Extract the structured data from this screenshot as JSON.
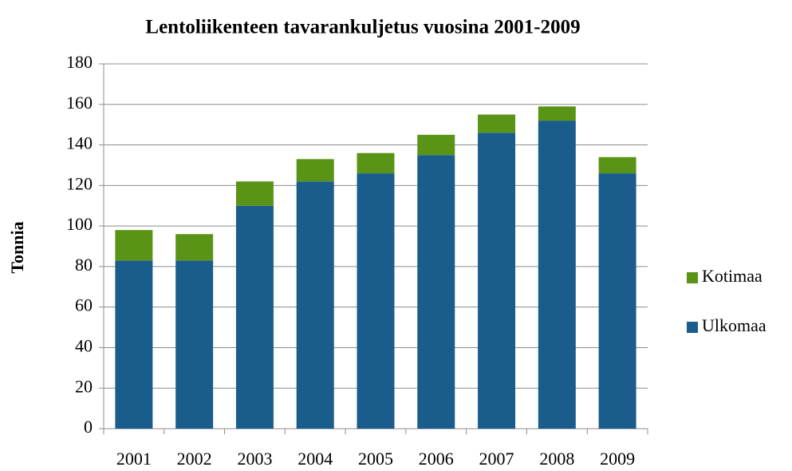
{
  "chart_data": {
    "type": "stacked-bar",
    "title": "Lentoliikenteen tavarankuljetus vuosina 2001-2009",
    "y_label": "Tonnia",
    "categories": [
      "2001",
      "2002",
      "2003",
      "2004",
      "2005",
      "2006",
      "2007",
      "2008",
      "2009"
    ],
    "series": [
      {
        "name": "Ulkomaa",
        "color": "#1a5c8c",
        "values": [
          83,
          83,
          110,
          122,
          126,
          135,
          146,
          152,
          126
        ]
      },
      {
        "name": "Kotimaa",
        "color": "#5a9416",
        "values": [
          15,
          13,
          12,
          11,
          10,
          10,
          9,
          7,
          8
        ]
      }
    ],
    "ylim": [
      0,
      180
    ],
    "yticks": [
      0,
      20,
      40,
      60,
      80,
      100,
      120,
      140,
      160,
      180
    ],
    "grid": true
  }
}
